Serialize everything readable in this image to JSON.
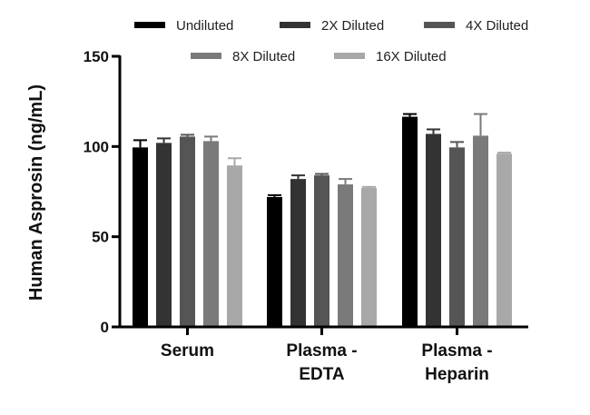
{
  "chart_data": {
    "type": "bar",
    "title": "",
    "xlabel": "",
    "ylabel": "Human Asprosin (ng/mL)",
    "ylim": [
      0,
      150
    ],
    "yticks": [
      "0",
      "50",
      "100",
      "150"
    ],
    "legend_position": "top",
    "grid": false,
    "categories": [
      [
        "Serum"
      ],
      [
        "Plasma -",
        "EDTA"
      ],
      [
        "Plasma -",
        "Heparin"
      ]
    ],
    "series": [
      {
        "name": "Undiluted",
        "color": "#000000",
        "values": [
          99.5,
          72,
          116.5
        ],
        "errors": [
          4,
          1,
          1.5
        ]
      },
      {
        "name": "2X Diluted",
        "color": "#333333",
        "values": [
          102,
          82,
          107
        ],
        "errors": [
          2.5,
          2,
          2.5
        ]
      },
      {
        "name": "4X Diluted",
        "color": "#555555",
        "values": [
          105.5,
          84,
          99.5
        ],
        "errors": [
          1,
          0.8,
          3
        ]
      },
      {
        "name": "8X Diluted",
        "color": "#7a7a7a",
        "values": [
          103,
          79,
          106
        ],
        "errors": [
          2.5,
          3,
          12
        ]
      },
      {
        "name": "16X Diluted",
        "color": "#a8a8a8",
        "values": [
          89.5,
          77,
          96
        ],
        "errors": [
          4,
          0.6,
          0.6
        ]
      }
    ]
  }
}
